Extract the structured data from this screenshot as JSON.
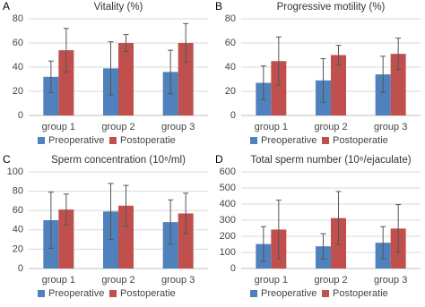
{
  "chart_data": [
    {
      "type": "bar",
      "panel": "A",
      "title": "Vitality (%)",
      "categories": [
        "group 1",
        "group 2",
        "group 3"
      ],
      "series": [
        {
          "name": "Preoperative",
          "color": "#4f81bd",
          "values": [
            32,
            39,
            36
          ],
          "errors": [
            13,
            22,
            18
          ]
        },
        {
          "name": "Postoperatie",
          "color": "#c0504d",
          "values": [
            54,
            60,
            60
          ],
          "errors": [
            18,
            7,
            16
          ]
        }
      ],
      "ylim": [
        0,
        80
      ],
      "yticks": [
        0,
        20,
        40,
        60,
        80
      ],
      "grid": true
    },
    {
      "type": "bar",
      "panel": "B",
      "title": "Progressive motility (%)",
      "categories": [
        "group 1",
        "group 2",
        "group 3"
      ],
      "series": [
        {
          "name": "Preoperative",
          "color": "#4f81bd",
          "values": [
            27,
            29,
            34
          ],
          "errors": [
            14,
            18,
            15
          ]
        },
        {
          "name": "Postoperatie",
          "color": "#c0504d",
          "values": [
            45,
            50,
            51
          ],
          "errors": [
            20,
            8,
            13
          ]
        }
      ],
      "ylim": [
        0,
        80
      ],
      "yticks": [
        0,
        20,
        40,
        60,
        80
      ],
      "grid": true
    },
    {
      "type": "bar",
      "panel": "C",
      "title": "Sperm concentration (10⁶/ml)",
      "categories": [
        "group 1",
        "group 2",
        "group 3"
      ],
      "series": [
        {
          "name": "Preoperative",
          "color": "#4f81bd",
          "values": [
            50,
            59,
            48
          ],
          "errors": [
            29,
            29,
            23
          ]
        },
        {
          "name": "Postoperatie",
          "color": "#c0504d",
          "values": [
            61,
            65,
            57
          ],
          "errors": [
            16,
            21,
            21
          ]
        }
      ],
      "ylim": [
        0,
        100
      ],
      "yticks": [
        0,
        20,
        40,
        60,
        80,
        100
      ],
      "grid": true
    },
    {
      "type": "bar",
      "panel": "D",
      "title": "Total sperm number (10⁶/ejaculate)",
      "categories": [
        "group 1",
        "group 2",
        "group 3"
      ],
      "series": [
        {
          "name": "Preoperative",
          "color": "#4f81bd",
          "values": [
            152,
            138,
            160
          ],
          "errors": [
            108,
            78,
            100
          ]
        },
        {
          "name": "Postoperatie",
          "color": "#c0504d",
          "values": [
            242,
            313,
            248
          ],
          "errors": [
            182,
            165,
            149
          ]
        }
      ],
      "ylim": [
        0,
        600
      ],
      "yticks": [
        0,
        100,
        200,
        300,
        400,
        500,
        600
      ],
      "grid": true
    }
  ]
}
